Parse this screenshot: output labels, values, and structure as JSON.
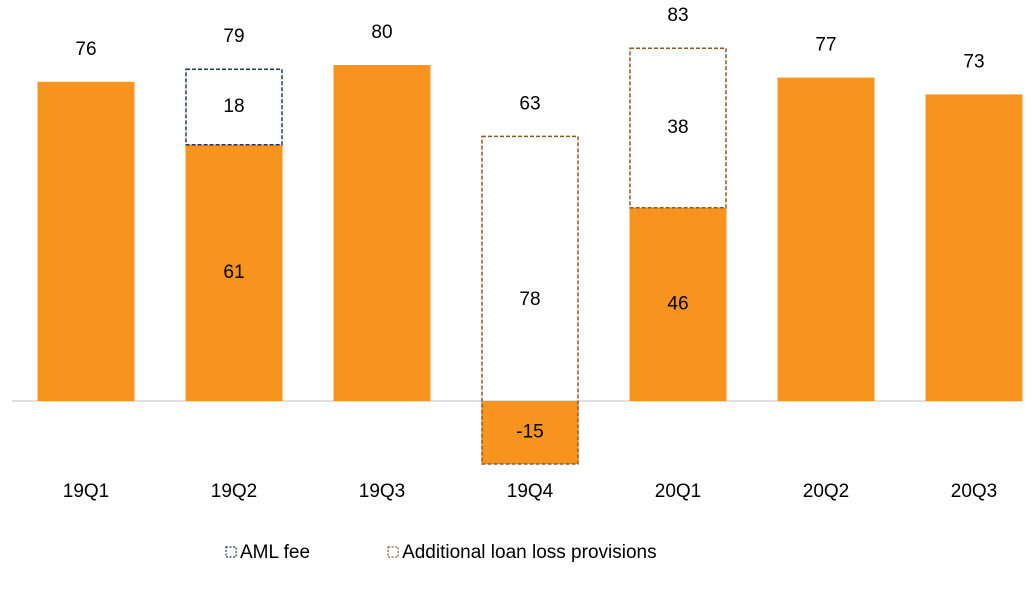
{
  "chart_data": {
    "type": "stacked_bar",
    "categories": [
      "19Q1",
      "19Q2",
      "19Q3",
      "19Q4",
      "20Q1",
      "20Q2",
      "20Q3"
    ],
    "series": [
      {
        "name": null,
        "color": "#f7941d",
        "values": [
          76,
          61,
          80,
          -15,
          46,
          77,
          73
        ]
      },
      {
        "name": "AML fee",
        "color": "#1f3864",
        "values": [
          null,
          18,
          null,
          null,
          null,
          null,
          null
        ]
      },
      {
        "name": "Additional loan loss provisions",
        "color": "#8b5a2b",
        "values": [
          null,
          null,
          null,
          78,
          38,
          null,
          null
        ]
      }
    ],
    "totals": [
      76,
      79,
      80,
      63,
      83,
      77,
      73
    ],
    "ylim": [
      -20,
      90
    ],
    "legend": "bottom"
  }
}
